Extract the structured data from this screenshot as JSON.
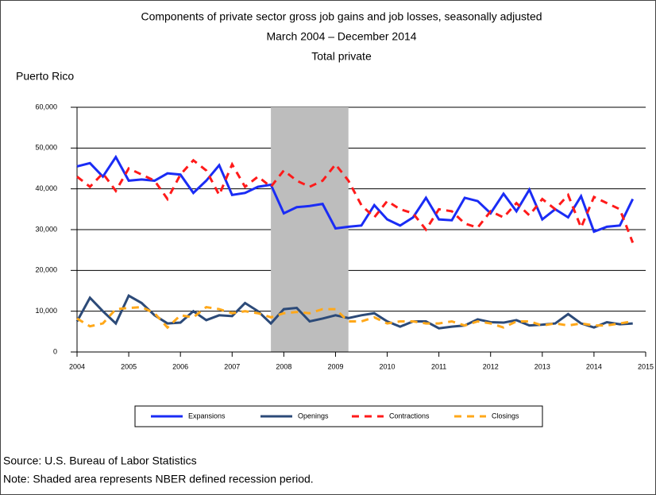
{
  "chart_data": {
    "type": "line",
    "title": "Components of private sector gross job gains and job losses, seasonally adjusted",
    "subtitle": [
      "March 2004 – December 2014",
      "Total private"
    ],
    "region_label": "Puerto Rico",
    "x": [
      2004,
      2004.25,
      2004.5,
      2004.75,
      2005,
      2005.25,
      2005.5,
      2005.75,
      2006,
      2006.25,
      2006.5,
      2006.75,
      2007,
      2007.25,
      2007.5,
      2007.75,
      2008,
      2008.25,
      2008.5,
      2008.75,
      2009,
      2009.25,
      2009.5,
      2009.75,
      2010,
      2010.25,
      2010.5,
      2010.75,
      2011,
      2011.25,
      2011.5,
      2011.75,
      2012,
      2012.25,
      2012.5,
      2012.75,
      2013,
      2013.25,
      2013.5,
      2013.75,
      2014,
      2014.25,
      2014.5,
      2014.75
    ],
    "series": [
      {
        "name": "Expansions",
        "color": "#1a2cf5",
        "style": "solid",
        "values": [
          45500,
          46300,
          43000,
          47800,
          42000,
          42300,
          42000,
          43800,
          43500,
          39000,
          42000,
          45800,
          38500,
          39000,
          40500,
          41000,
          34000,
          35500,
          35800,
          36300,
          30300,
          30700,
          31000,
          36000,
          32500,
          31000,
          33000,
          37800,
          32500,
          32300,
          37800,
          37000,
          34000,
          38800,
          34500,
          39800,
          32500,
          35000,
          33000,
          38200,
          29500,
          30700,
          31000,
          37500
        ]
      },
      {
        "name": "Openings",
        "color": "#2c4a78",
        "style": "solid",
        "values": [
          7500,
          13300,
          10000,
          7000,
          13800,
          12000,
          9000,
          7000,
          7200,
          10000,
          7800,
          9000,
          8800,
          12000,
          10000,
          7000,
          10500,
          10800,
          7500,
          8200,
          9000,
          8300,
          9000,
          9500,
          7500,
          6200,
          7500,
          7500,
          5800,
          6200,
          6500,
          8000,
          7300,
          7200,
          7800,
          6500,
          6700,
          7000,
          9300,
          7000,
          6000,
          7300,
          6800,
          7000
        ]
      },
      {
        "name": "Contractions",
        "color": "#ff1a1a",
        "style": "dashed",
        "values": [
          43000,
          40500,
          43800,
          39500,
          45000,
          43500,
          42000,
          37500,
          43500,
          47000,
          44500,
          38500,
          46000,
          40500,
          43000,
          40500,
          44500,
          42000,
          40500,
          42000,
          46000,
          42000,
          36000,
          33000,
          37000,
          35000,
          34000,
          30000,
          35000,
          34500,
          31500,
          30500,
          34500,
          33000,
          36500,
          33500,
          37500,
          35000,
          38500,
          30500,
          38000,
          36500,
          35000,
          26800
        ]
      },
      {
        "name": "Closings",
        "color": "#ffa81a",
        "style": "dashed",
        "values": [
          8200,
          6300,
          7000,
          10500,
          10800,
          11000,
          9500,
          6000,
          9000,
          8500,
          11000,
          10500,
          9500,
          10000,
          9500,
          8500,
          9500,
          9800,
          9500,
          10500,
          10500,
          7500,
          7500,
          8500,
          7000,
          7500,
          7500,
          7000,
          7000,
          7500,
          6500,
          7500,
          7000,
          6000,
          7500,
          7500,
          6500,
          7000,
          6500,
          7000,
          6500,
          6500,
          7000,
          7500
        ]
      }
    ],
    "shaded_range": [
      2007.75,
      2009.25
    ],
    "xlim": [
      2004,
      2015
    ],
    "xticks": [
      2004,
      2005,
      2006,
      2007,
      2008,
      2009,
      2010,
      2011,
      2012,
      2013,
      2014,
      2015
    ],
    "ylim": [
      0,
      60000
    ],
    "yticks": [
      0,
      {
        "value": 10000,
        "label": "10,000"
      },
      {
        "value": 20000,
        "label": "20,000"
      },
      {
        "value": 30000,
        "label": "30,000"
      },
      {
        "value": 40000,
        "label": "40,000"
      },
      {
        "value": 50000,
        "label": "50,000"
      },
      {
        "value": 60000,
        "label": "60,000"
      }
    ],
    "grid": true,
    "source": "Source: U.S. Bureau of Labor Statistics",
    "note": "Note: Shaded area represents NBER defined recession period."
  }
}
